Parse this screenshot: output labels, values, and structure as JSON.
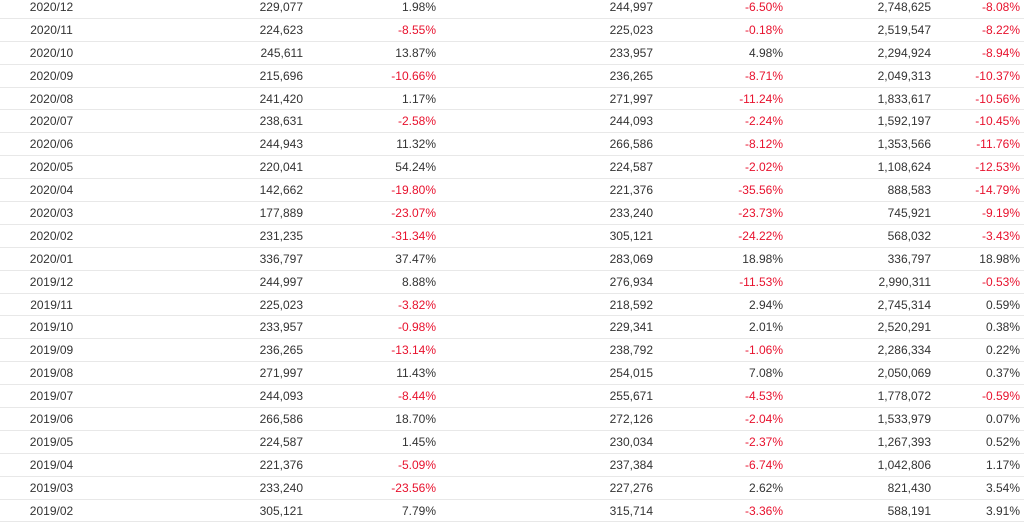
{
  "colors": {
    "negative": "#e8112d",
    "text": "#333333",
    "row_border": "#e8e8e8"
  },
  "rows": [
    {
      "period": "2020/12",
      "v1": "229,077",
      "p1": "1.98%",
      "v2": "244,997",
      "p2": "-6.50%",
      "v3": "2,748,625",
      "p3": "-8.08%"
    },
    {
      "period": "2020/11",
      "v1": "224,623",
      "p1": "-8.55%",
      "v2": "225,023",
      "p2": "-0.18%",
      "v3": "2,519,547",
      "p3": "-8.22%"
    },
    {
      "period": "2020/10",
      "v1": "245,611",
      "p1": "13.87%",
      "v2": "233,957",
      "p2": "4.98%",
      "v3": "2,294,924",
      "p3": "-8.94%"
    },
    {
      "period": "2020/09",
      "v1": "215,696",
      "p1": "-10.66%",
      "v2": "236,265",
      "p2": "-8.71%",
      "v3": "2,049,313",
      "p3": "-10.37%"
    },
    {
      "period": "2020/08",
      "v1": "241,420",
      "p1": "1.17%",
      "v2": "271,997",
      "p2": "-11.24%",
      "v3": "1,833,617",
      "p3": "-10.56%"
    },
    {
      "period": "2020/07",
      "v1": "238,631",
      "p1": "-2.58%",
      "v2": "244,093",
      "p2": "-2.24%",
      "v3": "1,592,197",
      "p3": "-10.45%"
    },
    {
      "period": "2020/06",
      "v1": "244,943",
      "p1": "11.32%",
      "v2": "266,586",
      "p2": "-8.12%",
      "v3": "1,353,566",
      "p3": "-11.76%"
    },
    {
      "period": "2020/05",
      "v1": "220,041",
      "p1": "54.24%",
      "v2": "224,587",
      "p2": "-2.02%",
      "v3": "1,108,624",
      "p3": "-12.53%"
    },
    {
      "period": "2020/04",
      "v1": "142,662",
      "p1": "-19.80%",
      "v2": "221,376",
      "p2": "-35.56%",
      "v3": "888,583",
      "p3": "-14.79%"
    },
    {
      "period": "2020/03",
      "v1": "177,889",
      "p1": "-23.07%",
      "v2": "233,240",
      "p2": "-23.73%",
      "v3": "745,921",
      "p3": "-9.19%"
    },
    {
      "period": "2020/02",
      "v1": "231,235",
      "p1": "-31.34%",
      "v2": "305,121",
      "p2": "-24.22%",
      "v3": "568,032",
      "p3": "-3.43%"
    },
    {
      "period": "2020/01",
      "v1": "336,797",
      "p1": "37.47%",
      "v2": "283,069",
      "p2": "18.98%",
      "v3": "336,797",
      "p3": "18.98%"
    },
    {
      "period": "2019/12",
      "v1": "244,997",
      "p1": "8.88%",
      "v2": "276,934",
      "p2": "-11.53%",
      "v3": "2,990,311",
      "p3": "-0.53%"
    },
    {
      "period": "2019/11",
      "v1": "225,023",
      "p1": "-3.82%",
      "v2": "218,592",
      "p2": "2.94%",
      "v3": "2,745,314",
      "p3": "0.59%"
    },
    {
      "period": "2019/10",
      "v1": "233,957",
      "p1": "-0.98%",
      "v2": "229,341",
      "p2": "2.01%",
      "v3": "2,520,291",
      "p3": "0.38%"
    },
    {
      "period": "2019/09",
      "v1": "236,265",
      "p1": "-13.14%",
      "v2": "238,792",
      "p2": "-1.06%",
      "v3": "2,286,334",
      "p3": "0.22%"
    },
    {
      "period": "2019/08",
      "v1": "271,997",
      "p1": "11.43%",
      "v2": "254,015",
      "p2": "7.08%",
      "v3": "2,050,069",
      "p3": "0.37%"
    },
    {
      "period": "2019/07",
      "v1": "244,093",
      "p1": "-8.44%",
      "v2": "255,671",
      "p2": "-4.53%",
      "v3": "1,778,072",
      "p3": "-0.59%"
    },
    {
      "period": "2019/06",
      "v1": "266,586",
      "p1": "18.70%",
      "v2": "272,126",
      "p2": "-2.04%",
      "v3": "1,533,979",
      "p3": "0.07%"
    },
    {
      "period": "2019/05",
      "v1": "224,587",
      "p1": "1.45%",
      "v2": "230,034",
      "p2": "-2.37%",
      "v3": "1,267,393",
      "p3": "0.52%"
    },
    {
      "period": "2019/04",
      "v1": "221,376",
      "p1": "-5.09%",
      "v2": "237,384",
      "p2": "-6.74%",
      "v3": "1,042,806",
      "p3": "1.17%"
    },
    {
      "period": "2019/03",
      "v1": "233,240",
      "p1": "-23.56%",
      "v2": "227,276",
      "p2": "2.62%",
      "v3": "821,430",
      "p3": "3.54%"
    },
    {
      "period": "2019/02",
      "v1": "305,121",
      "p1": "7.79%",
      "v2": "315,714",
      "p2": "-3.36%",
      "v3": "588,191",
      "p3": "3.91%"
    }
  ]
}
